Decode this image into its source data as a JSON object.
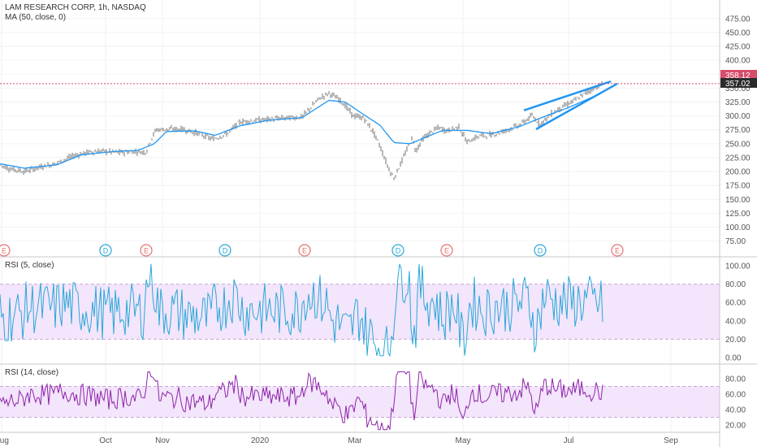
{
  "header": {
    "title": "LAM RESEARCH CORP, 1h, NASDAQ",
    "ma_label": "MA (50, close, 0)"
  },
  "colors": {
    "price_up": "#26a69a",
    "price_down": "#ef5350",
    "candle": "#333333",
    "ma_line": "#2196f3",
    "wedge_line": "#2196f3",
    "rsi5_line": "#29a8d8",
    "rsi14_line": "#8e24aa",
    "rsi_band": "#f3e5fb",
    "current_price_red": "#d74d6c",
    "current_price_dark": "#2b2b2b",
    "event_earnings": "#e57373",
    "event_dividend": "#29a8d8"
  },
  "chart_data": [
    {
      "type": "line",
      "name": "price-panel",
      "title": "LAM RESEARCH CORP, 1h, NASDAQ",
      "ylim": [
        70,
        485
      ],
      "yticks": [
        "475.00",
        "450.00",
        "425.00",
        "400.00",
        "375.00",
        "350.00",
        "325.00",
        "300.00",
        "275.00",
        "250.00",
        "225.00",
        "200.00",
        "175.00",
        "150.00",
        "125.00",
        "100.00",
        "75.00"
      ],
      "x_months": [
        "Aug",
        "Oct",
        "Nov",
        "2020",
        "Mar",
        "May",
        "Jul",
        "Sep"
      ],
      "price_anchors": [
        [
          0,
          212
        ],
        [
          12,
          205
        ],
        [
          30,
          200
        ],
        [
          50,
          208
        ],
        [
          70,
          215
        ],
        [
          90,
          228
        ],
        [
          110,
          235
        ],
        [
          125,
          237
        ],
        [
          145,
          234
        ],
        [
          165,
          236
        ],
        [
          180,
          235
        ],
        [
          186,
          258
        ],
        [
          192,
          275
        ],
        [
          205,
          276
        ],
        [
          225,
          276
        ],
        [
          245,
          268
        ],
        [
          262,
          258
        ],
        [
          280,
          268
        ],
        [
          295,
          289
        ],
        [
          310,
          291
        ],
        [
          330,
          294
        ],
        [
          350,
          296
        ],
        [
          372,
          298
        ],
        [
          392,
          330
        ],
        [
          405,
          341
        ],
        [
          420,
          327
        ],
        [
          435,
          300
        ],
        [
          448,
          296
        ],
        [
          460,
          270
        ],
        [
          468,
          245
        ],
        [
          478,
          207
        ],
        [
          485,
          188
        ],
        [
          492,
          210
        ],
        [
          500,
          236
        ],
        [
          507,
          260
        ],
        [
          512,
          237
        ],
        [
          520,
          258
        ],
        [
          530,
          270
        ],
        [
          540,
          279
        ],
        [
          550,
          273
        ],
        [
          565,
          280
        ],
        [
          575,
          253
        ],
        [
          590,
          264
        ],
        [
          605,
          266
        ],
        [
          625,
          275
        ],
        [
          640,
          284
        ],
        [
          655,
          300
        ],
        [
          665,
          285
        ],
        [
          680,
          305
        ],
        [
          695,
          318
        ],
        [
          710,
          330
        ],
        [
          725,
          345
        ],
        [
          742,
          358
        ]
      ],
      "ma_anchors": [
        [
          0,
          214
        ],
        [
          30,
          206
        ],
        [
          70,
          212
        ],
        [
          100,
          230
        ],
        [
          140,
          236
        ],
        [
          170,
          238
        ],
        [
          190,
          250
        ],
        [
          205,
          272
        ],
        [
          240,
          273
        ],
        [
          265,
          265
        ],
        [
          295,
          282
        ],
        [
          330,
          292
        ],
        [
          372,
          297
        ],
        [
          405,
          328
        ],
        [
          425,
          325
        ],
        [
          445,
          305
        ],
        [
          468,
          283
        ],
        [
          485,
          252
        ],
        [
          505,
          250
        ],
        [
          525,
          262
        ],
        [
          545,
          274
        ],
        [
          575,
          274
        ],
        [
          605,
          268
        ],
        [
          640,
          281
        ],
        [
          665,
          296
        ],
        [
          700,
          315
        ],
        [
          742,
          342
        ]
      ],
      "current_price_high": "358.12",
      "current_price_last": "357.02",
      "current_price_value": 358.12,
      "wedge_upper": [
        [
          645,
          310
        ],
        [
          752,
          362
        ]
      ],
      "wedge_lower": [
        [
          660,
          276
        ],
        [
          760,
          358
        ]
      ],
      "events": [
        {
          "label": "E",
          "kind": "earnings"
        },
        {
          "label": "D",
          "kind": "dividend"
        },
        {
          "label": "E",
          "kind": "earnings"
        },
        {
          "label": "D",
          "kind": "dividend"
        },
        {
          "label": "E",
          "kind": "earnings"
        },
        {
          "label": "D",
          "kind": "dividend"
        },
        {
          "label": "E",
          "kind": "earnings"
        },
        {
          "label": "D",
          "kind": "dividend"
        },
        {
          "label": "E",
          "kind": "earnings"
        }
      ]
    },
    {
      "type": "line",
      "name": "rsi-5-panel",
      "title": "RSI (5, close)",
      "ylim": [
        0,
        105
      ],
      "yticks": [
        "100.00",
        "80.00",
        "60.00",
        "40.00",
        "20.00",
        "0.00"
      ],
      "band": [
        20,
        80
      ],
      "amplitude": 30,
      "base": 50
    },
    {
      "type": "line",
      "name": "rsi-14-panel",
      "title": "RSI (14, close)",
      "ylim": [
        12,
        92
      ],
      "yticks": [
        "80.00",
        "60.00",
        "40.00",
        "20.00"
      ],
      "band": [
        30,
        70
      ],
      "amplitude": 14,
      "base": 55
    }
  ]
}
